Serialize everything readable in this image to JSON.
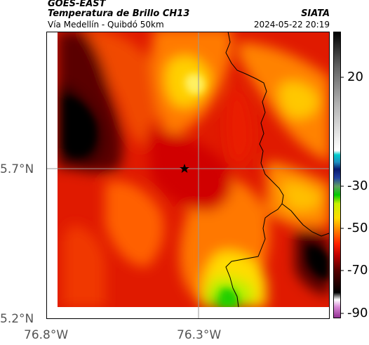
{
  "header": {
    "satellite": "GOES-EAST",
    "title": "Temperatura de Brillo CH13",
    "organization": "SIATA",
    "subtitle": "Vía Medellín - Quibdó 50km",
    "datetime": "2024-05-22 20:19"
  },
  "map": {
    "lat_labels": [
      "5.7°N",
      "5.2°N"
    ],
    "lon_labels": [
      "76.8°W",
      "76.3°W"
    ],
    "marker": "star-marker"
  },
  "colorbar": {
    "tick_labels": [
      "20",
      "-30",
      "-50",
      "-70",
      "-90"
    ],
    "colors": [
      "#8f2b8e",
      "#d88ad6",
      "#000000",
      "#5a0000",
      "#c00000",
      "#ff2200",
      "#ff8800",
      "#ffdd00",
      "#00cc00",
      "#1030a0",
      "#00cccc",
      "#ffffff",
      "#888888",
      "#000000"
    ]
  }
}
